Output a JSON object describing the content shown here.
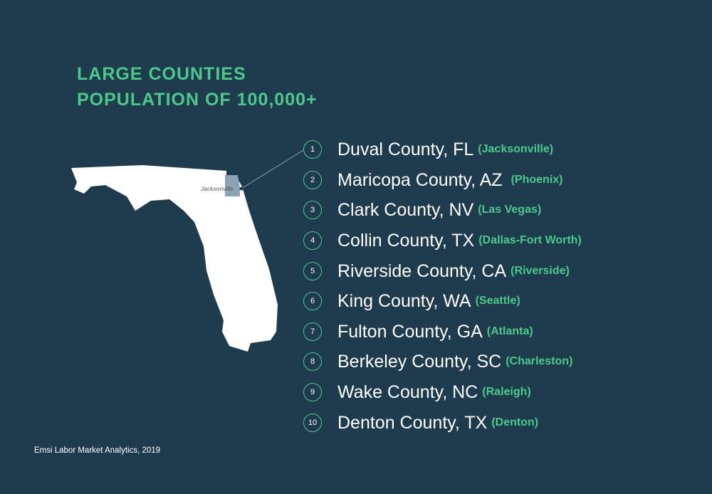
{
  "heading": {
    "line1": "LARGE COUNTIES",
    "line2": "POPULATION OF 100,000+"
  },
  "map": {
    "state_icon": "florida-map-icon",
    "highlight_label": "Jacksonville"
  },
  "colors": {
    "background": "#1e3c4e",
    "accent": "#4cc98a",
    "text": "#ffffff",
    "highlight": "#8aa3b5"
  },
  "counties": [
    {
      "rank": "1",
      "county": "Duval County, FL",
      "city": "(Jacksonville)"
    },
    {
      "rank": "2",
      "county": "Maricopa County, AZ",
      "city": "(Phoenix)"
    },
    {
      "rank": "3",
      "county": "Clark County, NV",
      "city": "(Las Vegas)"
    },
    {
      "rank": "4",
      "county": "Collin County, TX",
      "city": "(Dallas-Fort Worth)"
    },
    {
      "rank": "5",
      "county": "Riverside County, CA",
      "city": "(Riverside)"
    },
    {
      "rank": "6",
      "county": "King County, WA",
      "city": "(Seattle)"
    },
    {
      "rank": "7",
      "county": "Fulton County, GA",
      "city": "(Atlanta)"
    },
    {
      "rank": "8",
      "county": "Berkeley County, SC",
      "city": "(Charleston)"
    },
    {
      "rank": "9",
      "county": "Wake County, NC",
      "city": "(Raleigh)"
    },
    {
      "rank": "10",
      "county": "Denton County, TX",
      "city": "(Denton)"
    }
  ],
  "source": "Emsi Labor Market Analytics, 2019"
}
